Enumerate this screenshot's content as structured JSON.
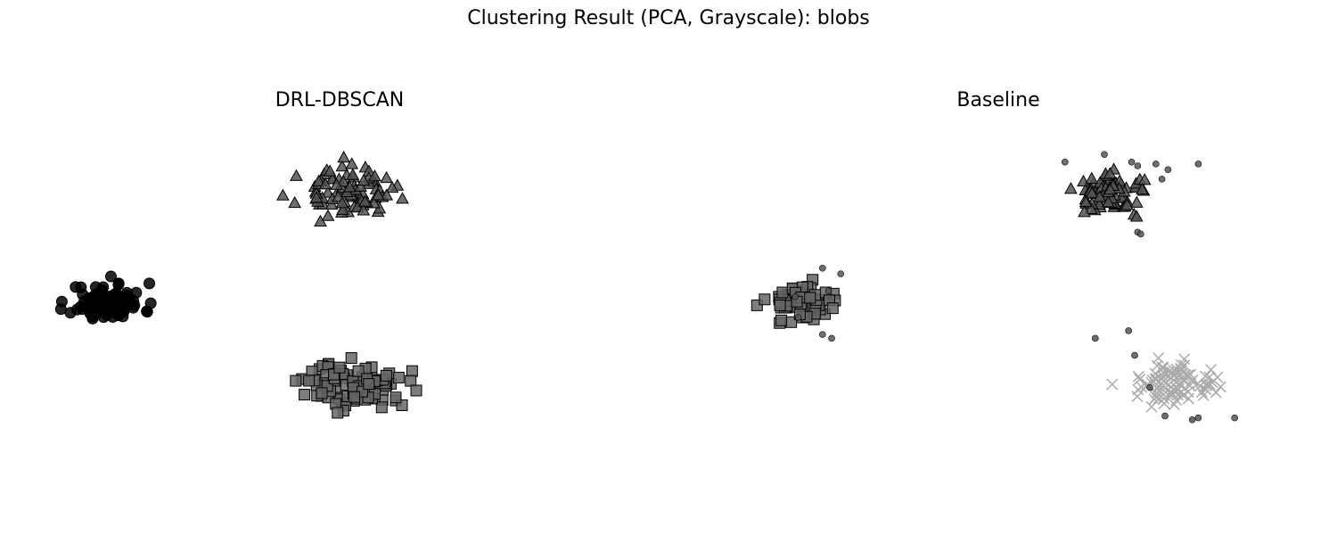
{
  "title": "Clustering Result (PCA, Grayscale): blobs",
  "chart_data": [
    {
      "type": "scatter",
      "title": "DRL-DBSCAN",
      "xlabel": "",
      "ylabel": "",
      "axes_visible": false,
      "xlim": [
        -10,
        10
      ],
      "ylim": [
        -10,
        10
      ],
      "clusters": [
        {
          "marker": "circle",
          "color": "#000000",
          "center": [
            -7.6,
            0.4
          ],
          "spread": [
            0.6,
            0.5
          ],
          "n": 90,
          "seed": 11
        },
        {
          "marker": "triangle",
          "color": "#555555",
          "center": [
            0.2,
            6.2
          ],
          "spread": [
            0.75,
            0.6
          ],
          "n": 90,
          "seed": 23
        },
        {
          "marker": "square",
          "color": "#666666",
          "center": [
            0.6,
            -4.0
          ],
          "spread": [
            0.85,
            0.6
          ],
          "n": 90,
          "seed": 37
        }
      ]
    },
    {
      "type": "scatter",
      "title": "Baseline",
      "xlabel": "",
      "ylabel": "",
      "axes_visible": false,
      "xlim": [
        -10,
        10
      ],
      "ylim": [
        -10,
        10
      ],
      "clusters": [
        {
          "marker": "triangle",
          "color": "#555555",
          "center": [
            3.8,
            6.2
          ],
          "spread": [
            0.6,
            0.5
          ],
          "n": 80,
          "seed": 41
        },
        {
          "marker": "square",
          "color": "#666666",
          "center": [
            -6.5,
            0.5
          ],
          "spread": [
            0.55,
            0.5
          ],
          "n": 80,
          "seed": 53
        },
        {
          "marker": "x",
          "color": "#aaaaaa",
          "center": [
            5.8,
            -4.0
          ],
          "spread": [
            0.7,
            0.55
          ],
          "n": 90,
          "seed": 67
        }
      ],
      "noise_points": [
        [
          2.2,
          7.8
        ],
        [
          3.5,
          8.2
        ],
        [
          4.4,
          7.8
        ],
        [
          4.6,
          7.6
        ],
        [
          5.2,
          7.7
        ],
        [
          5.6,
          7.4
        ],
        [
          6.6,
          7.7
        ],
        [
          5.4,
          6.9
        ],
        [
          4.6,
          4.1
        ],
        [
          4.7,
          4.0
        ],
        [
          -5.8,
          2.2
        ],
        [
          -5.2,
          1.9
        ],
        [
          -5.6,
          1.0
        ],
        [
          -6.7,
          0.7
        ],
        [
          -6.6,
          -0.4
        ],
        [
          -5.8,
          -1.3
        ],
        [
          -5.5,
          -1.5
        ],
        [
          3.2,
          -1.5
        ],
        [
          4.3,
          -1.1
        ],
        [
          4.5,
          -2.4
        ],
        [
          5.0,
          -4.1
        ],
        [
          5.5,
          -5.6
        ],
        [
          6.4,
          -5.8
        ],
        [
          6.6,
          -5.7
        ],
        [
          7.8,
          -5.7
        ]
      ],
      "noise_color": "#555555"
    }
  ]
}
